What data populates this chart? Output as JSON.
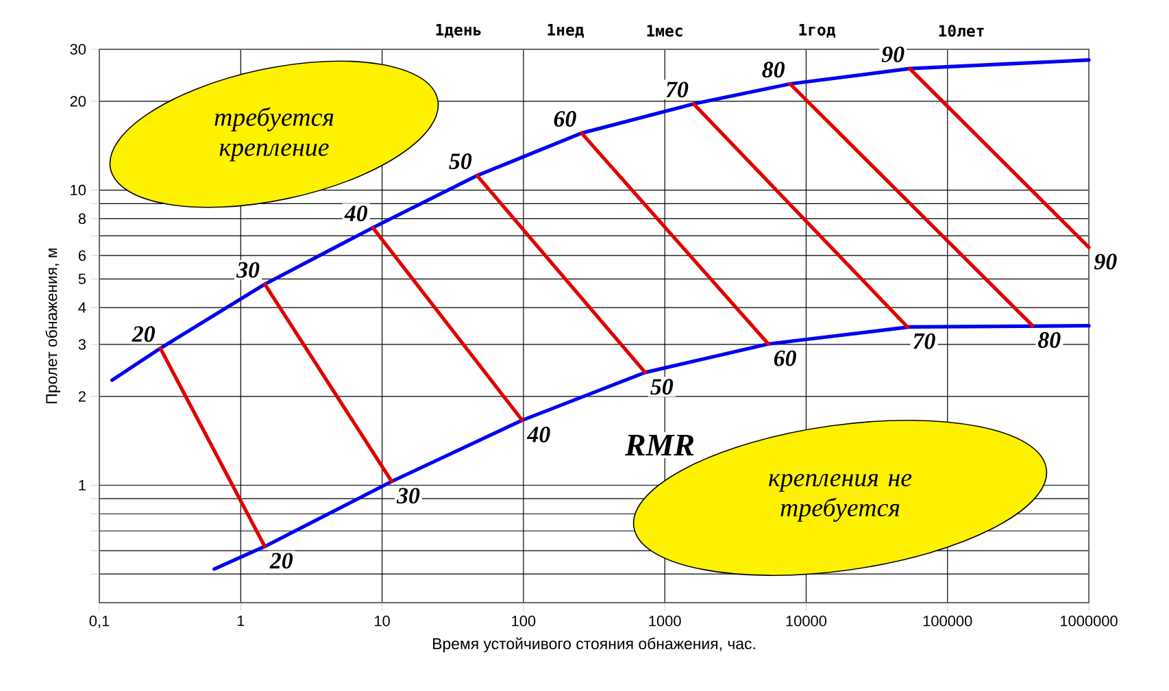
{
  "chart_data": {
    "type": "line",
    "xlabel": "Время устойчивого стояния обнажения, час.",
    "ylabel": "Пролет обнажения, м",
    "log": "xy",
    "grid": true,
    "marker": "none",
    "line_style": "solid",
    "xlim": [
      0.1,
      1000000
    ],
    "ylim": [
      0.4,
      30
    ],
    "xticks": [
      {
        "value": 0.1,
        "label": "0,1"
      },
      1,
      10,
      100,
      1000,
      10000,
      100000,
      1000000
    ],
    "yticks": [
      {
        "value": 0.5,
        "label": null
      },
      {
        "value": 0.6,
        "label": null
      },
      {
        "value": 0.7,
        "label": null
      },
      {
        "value": 0.8,
        "label": null
      },
      {
        "value": 0.9,
        "label": null
      },
      1,
      2,
      3,
      4,
      5,
      6,
      {
        "value": 7,
        "label": null
      },
      8,
      {
        "value": 9,
        "label": null
      },
      10,
      20,
      30
    ],
    "series": [
      {
        "color": "#0000ee",
        "x": [
          0.123,
          0.27,
          1.48,
          8.6,
          47,
          258,
          1600,
          7700,
          54000,
          1000000
        ],
        "values": [
          2.27,
          2.91,
          4.8,
          7.46,
          11.2,
          15.6,
          19.6,
          22.9,
          25.8,
          27.6
        ]
      },
      {
        "color": "#0000ee",
        "x": [
          0.65,
          1.48,
          11.7,
          98,
          726,
          5400,
          54000,
          1000000
        ],
        "values": [
          0.52,
          0.62,
          1.03,
          1.66,
          2.41,
          3.01,
          3.44,
          3.47
        ]
      },
      {
        "color": "#e00000",
        "x": [
          0.27,
          1.48
        ],
        "values": [
          2.91,
          0.62
        ]
      },
      {
        "color": "#e00000",
        "x": [
          1.48,
          11.7
        ],
        "values": [
          4.8,
          1.03
        ]
      },
      {
        "color": "#e00000",
        "x": [
          8.6,
          98
        ],
        "values": [
          7.46,
          1.66
        ]
      },
      {
        "color": "#e00000",
        "x": [
          47,
          726
        ],
        "values": [
          11.2,
          2.41
        ]
      },
      {
        "color": "#e00000",
        "x": [
          258,
          5400
        ],
        "values": [
          15.6,
          3.01
        ]
      },
      {
        "color": "#e00000",
        "x": [
          1600,
          52000
        ],
        "values": [
          19.6,
          3.44
        ]
      },
      {
        "color": "#e00000",
        "x": [
          7700,
          400000
        ],
        "values": [
          22.9,
          3.47
        ]
      },
      {
        "color": "#e00000",
        "x": [
          54000,
          1000000
        ],
        "values": [
          25.8,
          6.4
        ]
      }
    ],
    "annotations": [
      "требуется крепление",
      "крепления не требуется",
      "RMR",
      {
        "text": "20",
        "x": 0.27,
        "y": 2.91
      },
      {
        "text": "30",
        "x": 1.48,
        "y": 4.8
      },
      {
        "text": "40",
        "x": 8.6,
        "y": 7.46
      },
      {
        "text": "50",
        "x": 47,
        "y": 11.2
      },
      {
        "text": "60",
        "x": 258,
        "y": 15.6
      },
      {
        "text": "70",
        "x": 1600,
        "y": 19.6
      },
      {
        "text": "80",
        "x": 7700,
        "y": 22.9
      },
      {
        "text": "90",
        "x": 54000,
        "y": 25.8
      },
      {
        "text": "20",
        "x": 1.48,
        "y": 0.62
      },
      {
        "text": "30",
        "x": 11.7,
        "y": 1.03
      },
      {
        "text": "40",
        "x": 98,
        "y": 1.66
      },
      {
        "text": "50",
        "x": 726,
        "y": 2.41
      },
      {
        "text": "60",
        "x": 5400,
        "y": 3.01
      },
      {
        "text": "70",
        "x": 52000,
        "y": 3.44
      },
      {
        "text": "80",
        "x": 400000,
        "y": 3.47
      },
      {
        "text": "90",
        "x": 1000000,
        "y": 6.4
      },
      "1день",
      "1нед",
      "1мес",
      "1год",
      "10лет"
    ]
  }
}
